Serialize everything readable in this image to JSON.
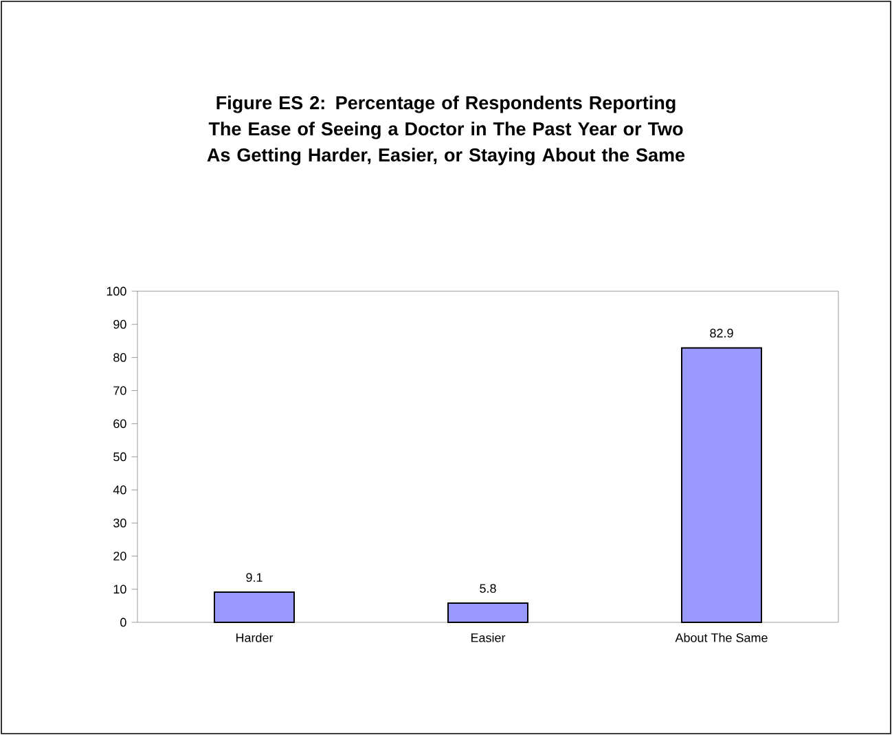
{
  "chart_data": {
    "type": "bar",
    "title": "Figure ES 2: Percentage of Respondents Reporting The Ease of Seeing a Doctor in The Past Year or Two As Getting Harder, Easier, or Staying About the Same",
    "categories": [
      "Harder",
      "Easier",
      "About The Same"
    ],
    "values": [
      9.1,
      5.8,
      82.9
    ],
    "color": "#9999ff",
    "ylim": [
      0,
      100
    ],
    "yticks": [
      0,
      10,
      20,
      30,
      40,
      50,
      60,
      70,
      80,
      90,
      100
    ],
    "data_labels": true
  }
}
